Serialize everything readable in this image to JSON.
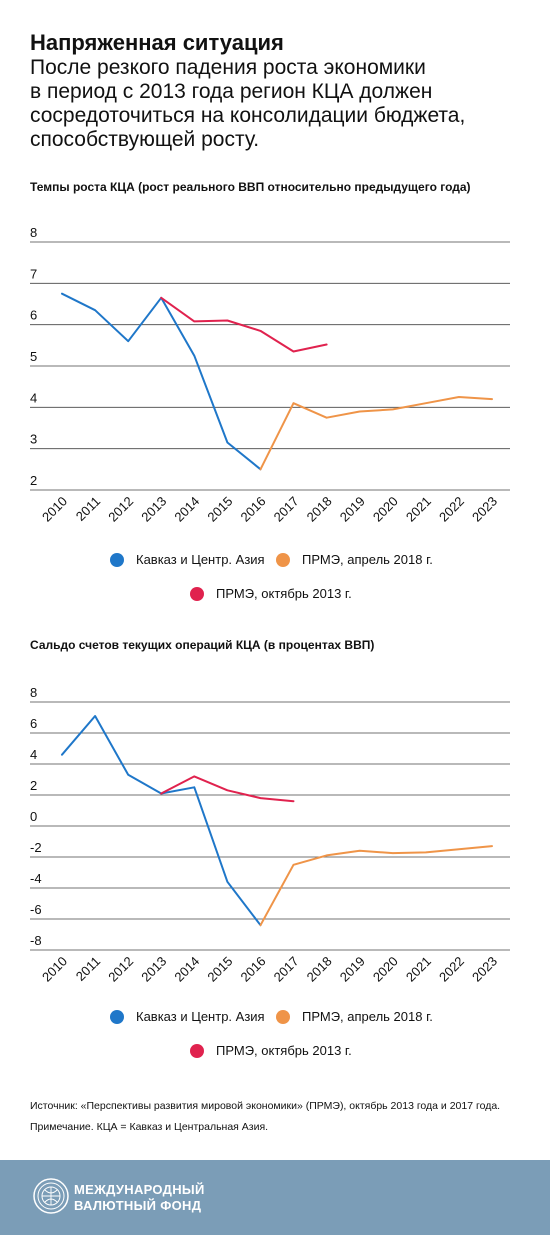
{
  "header": {
    "title": "Напряженная ситуация",
    "subtitle_lines": [
      "После резкого падения роста экономики",
      "в период с 2013 года регион КЦА должен",
      "сосредоточиться на консолидации бюджета,",
      "способствующей росту."
    ]
  },
  "colors": {
    "cca": "#1f77c9",
    "weo_2018": "#ef9448",
    "weo_2013": "#e0224e",
    "grid": "#444444",
    "footer_bg": "#7b9db7"
  },
  "legend": {
    "cca": "Кавказ и Центр. Азия",
    "weo_2018": "ПРМЭ, апрель 2018 г.",
    "weo_2013": "ПРМЭ, октябрь 2013 г."
  },
  "chart_data": [
    {
      "type": "line",
      "title": "Темпы роста КЦА (рост реального ВВП относительно предыдущего года)",
      "categories": [
        "2010",
        "2011",
        "2012",
        "2013",
        "2014",
        "2015",
        "2016",
        "2017",
        "2018",
        "2019",
        "2020",
        "2021",
        "2022",
        "2023"
      ],
      "ylim": [
        2,
        8
      ],
      "yticks": [
        2,
        3,
        4,
        5,
        6,
        7,
        8
      ],
      "grid": true,
      "series": [
        {
          "name": "Кавказ и Центр. Азия",
          "color_key": "cca",
          "x": [
            "2010",
            "2011",
            "2012",
            "2013",
            "2014",
            "2015",
            "2016"
          ],
          "values": [
            6.75,
            6.35,
            5.6,
            6.65,
            5.25,
            3.15,
            2.5
          ]
        },
        {
          "name": "ПРМЭ, апрель 2018 г.",
          "color_key": "weo_2018",
          "x": [
            "2016",
            "2017",
            "2018",
            "2019",
            "2020",
            "2021",
            "2022",
            "2023"
          ],
          "values": [
            2.5,
            4.1,
            3.75,
            3.9,
            3.95,
            4.1,
            4.25,
            4.2
          ]
        },
        {
          "name": "ПРМЭ, октябрь 2013 г.",
          "color_key": "weo_2013",
          "x": [
            "2013",
            "2014",
            "2015",
            "2016",
            "2017",
            "2018"
          ],
          "values": [
            6.65,
            6.08,
            6.1,
            5.85,
            5.35,
            5.52
          ]
        }
      ]
    },
    {
      "type": "line",
      "title": "Сальдо счетов текущих операций КЦА (в процентах ВВП)",
      "categories": [
        "2010",
        "2011",
        "2012",
        "2013",
        "2014",
        "2015",
        "2016",
        "2017",
        "2018",
        "2019",
        "2020",
        "2021",
        "2022",
        "2023"
      ],
      "ylim": [
        -8,
        8
      ],
      "yticks": [
        -8,
        -6,
        -4,
        -2,
        0,
        2,
        4,
        6,
        8
      ],
      "grid": true,
      "series": [
        {
          "name": "Кавказ и Центр. Азия",
          "color_key": "cca",
          "x": [
            "2010",
            "2011",
            "2012",
            "2013",
            "2014",
            "2015",
            "2016"
          ],
          "values": [
            4.6,
            7.1,
            3.3,
            2.1,
            2.5,
            -3.6,
            -6.4
          ]
        },
        {
          "name": "ПРМЭ, апрель 2018 г.",
          "color_key": "weo_2018",
          "x": [
            "2016",
            "2017",
            "2018",
            "2019",
            "2020",
            "2021",
            "2022",
            "2023"
          ],
          "values": [
            -6.4,
            -2.5,
            -1.9,
            -1.6,
            -1.75,
            -1.7,
            -1.5,
            -1.3
          ]
        },
        {
          "name": "ПРМЭ, октябрь 2013 г.",
          "color_key": "weo_2013",
          "x": [
            "2013",
            "2014",
            "2015",
            "2016",
            "2017"
          ],
          "values": [
            2.1,
            3.2,
            2.3,
            1.8,
            1.6
          ]
        }
      ]
    }
  ],
  "notes": {
    "source": "Источник: «Перспективы развития мировой экономики» (ПРМЭ), октябрь 2013 года и 2017 года.",
    "note": "Примечание. КЦА = Кавказ и Центральная Азия."
  },
  "footer": {
    "line1": "МЕЖДУНАРОДНЫЙ",
    "line2": "ВАЛЮТНЫЙ ФОНД"
  }
}
